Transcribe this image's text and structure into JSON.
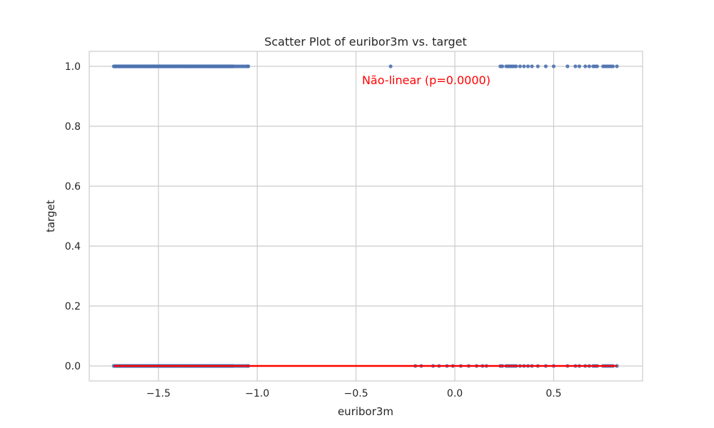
{
  "chart_data": {
    "type": "scatter",
    "title": "Scatter Plot of euribor3m vs. target",
    "xlabel": "euribor3m",
    "ylabel": "target",
    "xlim": [
      -1.85,
      0.95
    ],
    "ylim": [
      -0.05,
      1.05
    ],
    "xticks": [
      -1.5,
      -1.0,
      -0.5,
      0.0,
      0.5
    ],
    "xtick_labels": [
      "−1.5",
      "−1.0",
      "−0.5",
      "0.0",
      "0.5"
    ],
    "yticks": [
      0.0,
      0.2,
      0.4,
      0.6,
      0.8,
      1.0
    ],
    "ytick_labels": [
      "0.0",
      "0.2",
      "0.4",
      "0.6",
      "0.8",
      "1.0"
    ],
    "grid": true,
    "point_color": "#4c72b0",
    "line_color": "#ff0000",
    "series": [
      {
        "y": 1.0,
        "x": [
          -1.726,
          -1.72,
          -1.715,
          -1.71,
          -1.705,
          -1.7,
          -1.695,
          -1.69,
          -1.685,
          -1.68,
          -1.675,
          -1.67,
          -1.665,
          -1.66,
          -1.655,
          -1.65,
          -1.645,
          -1.64,
          -1.635,
          -1.63,
          -1.625,
          -1.62,
          -1.615,
          -1.61,
          -1.605,
          -1.6,
          -1.595,
          -1.59,
          -1.585,
          -1.58,
          -1.575,
          -1.57,
          -1.565,
          -1.56,
          -1.555,
          -1.55,
          -1.545,
          -1.54,
          -1.535,
          -1.53,
          -1.525,
          -1.52,
          -1.515,
          -1.51,
          -1.505,
          -1.5,
          -1.495,
          -1.49,
          -1.485,
          -1.48,
          -1.475,
          -1.47,
          -1.465,
          -1.46,
          -1.455,
          -1.45,
          -1.445,
          -1.44,
          -1.435,
          -1.43,
          -1.425,
          -1.42,
          -1.415,
          -1.41,
          -1.405,
          -1.4,
          -1.395,
          -1.39,
          -1.385,
          -1.38,
          -1.375,
          -1.37,
          -1.365,
          -1.36,
          -1.355,
          -1.35,
          -1.345,
          -1.34,
          -1.335,
          -1.33,
          -1.325,
          -1.32,
          -1.315,
          -1.31,
          -1.305,
          -1.3,
          -1.295,
          -1.29,
          -1.285,
          -1.28,
          -1.275,
          -1.27,
          -1.265,
          -1.26,
          -1.255,
          -1.25,
          -1.245,
          -1.24,
          -1.235,
          -1.23,
          -1.225,
          -1.22,
          -1.215,
          -1.21,
          -1.205,
          -1.2,
          -1.195,
          -1.19,
          -1.185,
          -1.18,
          -1.175,
          -1.17,
          -1.165,
          -1.16,
          -1.155,
          -1.15,
          -1.145,
          -1.14,
          -1.135,
          -1.13,
          -1.125,
          -1.12,
          -1.11,
          -1.1,
          -1.09,
          -1.08,
          -1.07,
          -1.06,
          -1.05,
          -1.045,
          -0.325,
          0.23,
          0.24,
          0.26,
          0.27,
          0.28,
          0.29,
          0.3,
          0.31,
          0.33,
          0.35,
          0.37,
          0.39,
          0.42,
          0.46,
          0.5,
          0.57,
          0.61,
          0.63,
          0.66,
          0.68,
          0.7,
          0.71,
          0.72,
          0.75,
          0.76,
          0.77,
          0.78,
          0.79,
          0.8,
          0.82
        ]
      },
      {
        "y": 0.0,
        "x": [
          -1.726,
          -1.72,
          -1.715,
          -1.71,
          -1.705,
          -1.7,
          -1.695,
          -1.69,
          -1.685,
          -1.68,
          -1.675,
          -1.67,
          -1.665,
          -1.66,
          -1.655,
          -1.65,
          -1.645,
          -1.64,
          -1.635,
          -1.63,
          -1.625,
          -1.62,
          -1.615,
          -1.61,
          -1.605,
          -1.6,
          -1.595,
          -1.59,
          -1.585,
          -1.58,
          -1.575,
          -1.57,
          -1.565,
          -1.56,
          -1.555,
          -1.55,
          -1.545,
          -1.54,
          -1.535,
          -1.53,
          -1.525,
          -1.52,
          -1.515,
          -1.51,
          -1.505,
          -1.5,
          -1.495,
          -1.49,
          -1.485,
          -1.48,
          -1.475,
          -1.47,
          -1.465,
          -1.46,
          -1.455,
          -1.45,
          -1.445,
          -1.44,
          -1.435,
          -1.43,
          -1.425,
          -1.42,
          -1.415,
          -1.41,
          -1.405,
          -1.4,
          -1.395,
          -1.39,
          -1.385,
          -1.38,
          -1.375,
          -1.37,
          -1.365,
          -1.36,
          -1.355,
          -1.35,
          -1.345,
          -1.34,
          -1.335,
          -1.33,
          -1.325,
          -1.32,
          -1.315,
          -1.31,
          -1.305,
          -1.3,
          -1.295,
          -1.29,
          -1.285,
          -1.28,
          -1.275,
          -1.27,
          -1.265,
          -1.26,
          -1.255,
          -1.25,
          -1.245,
          -1.24,
          -1.235,
          -1.23,
          -1.225,
          -1.22,
          -1.215,
          -1.21,
          -1.205,
          -1.2,
          -1.195,
          -1.19,
          -1.185,
          -1.18,
          -1.175,
          -1.17,
          -1.165,
          -1.16,
          -1.155,
          -1.15,
          -1.145,
          -1.14,
          -1.135,
          -1.13,
          -1.125,
          -1.12,
          -1.11,
          -1.1,
          -1.09,
          -1.08,
          -1.07,
          -1.06,
          -1.05,
          -1.045,
          -0.2,
          -0.17,
          -0.11,
          -0.08,
          -0.04,
          -0.01,
          0.03,
          0.07,
          0.11,
          0.14,
          0.16,
          0.23,
          0.24,
          0.26,
          0.27,
          0.28,
          0.29,
          0.3,
          0.31,
          0.33,
          0.35,
          0.37,
          0.39,
          0.42,
          0.46,
          0.5,
          0.57,
          0.61,
          0.63,
          0.66,
          0.68,
          0.7,
          0.71,
          0.72,
          0.75,
          0.76,
          0.77,
          0.78,
          0.79,
          0.8,
          0.82
        ]
      }
    ],
    "fit_line": {
      "x": [
        -1.726,
        0.82
      ],
      "y": [
        0.0,
        0.0
      ]
    },
    "annotation": {
      "text": "Não-linear (p=0.0000)",
      "x": -0.47,
      "y": 0.955,
      "color": "#ff0000"
    }
  }
}
